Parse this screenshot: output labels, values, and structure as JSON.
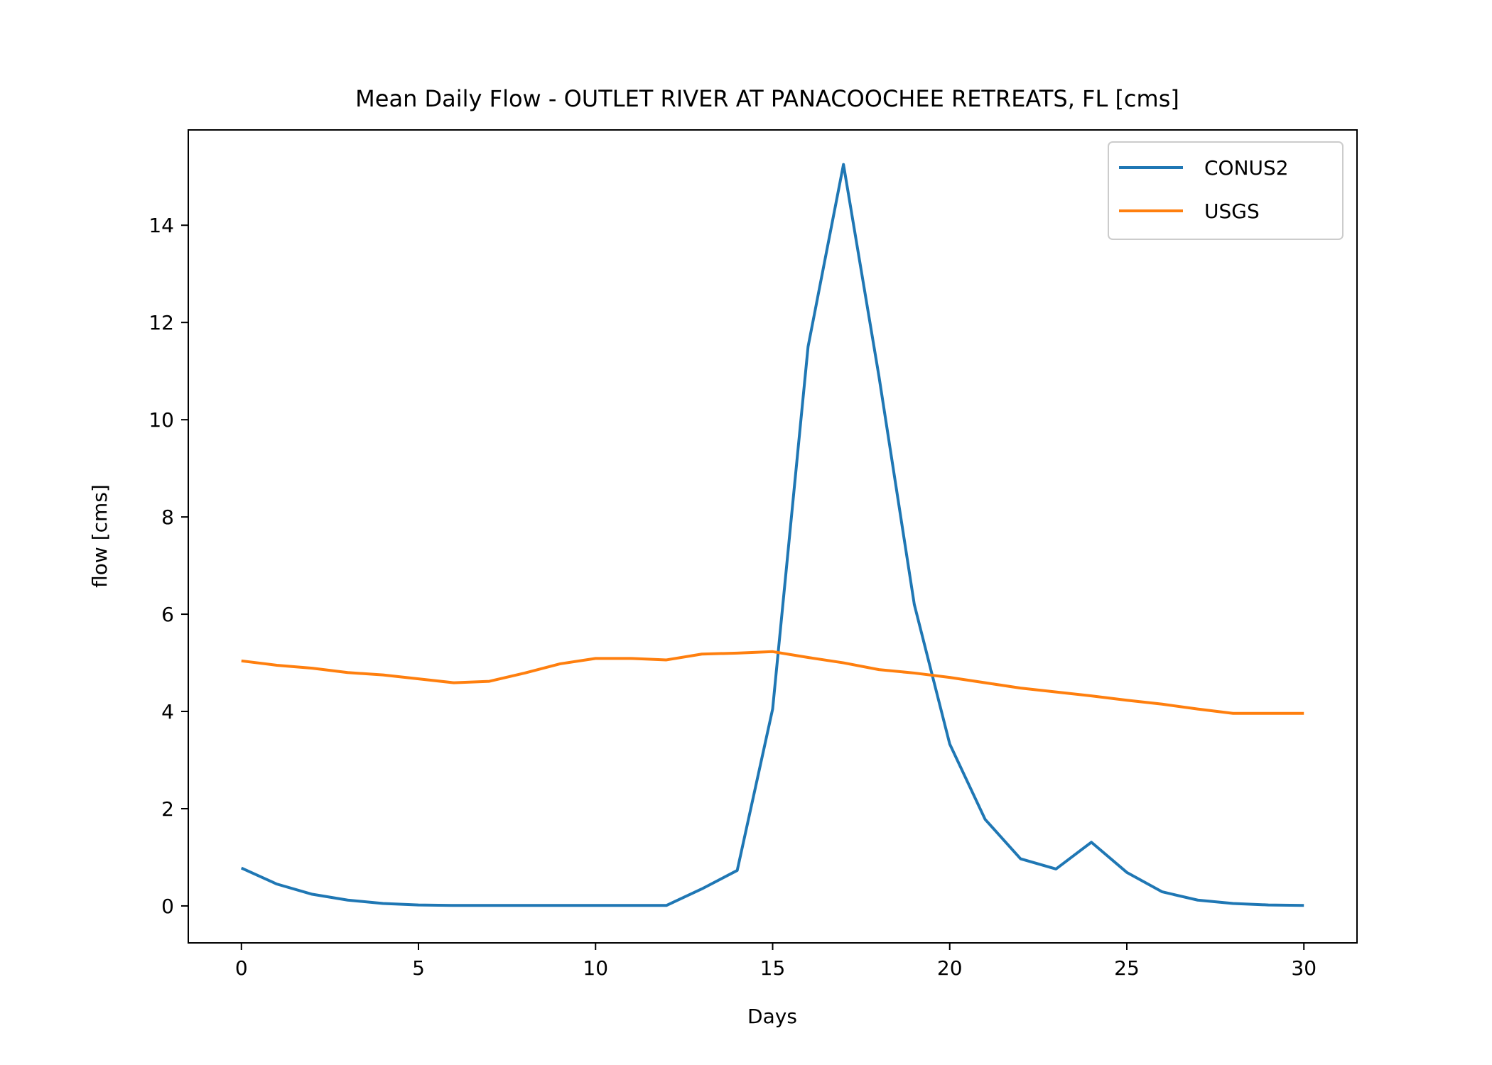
{
  "chart_data": {
    "type": "line",
    "title": "Mean Daily Flow - OUTLET RIVER AT PANACOOCHEE RETREATS, FL [cms]",
    "xlabel": "Days",
    "ylabel": "flow [cms]",
    "xlim": [
      -1.5,
      31.5
    ],
    "ylim": [
      -0.76,
      15.96
    ],
    "xticks": [
      0,
      5,
      10,
      15,
      20,
      25,
      30
    ],
    "yticks": [
      0,
      2,
      4,
      6,
      8,
      10,
      12,
      14
    ],
    "x": [
      0,
      1,
      2,
      3,
      4,
      5,
      6,
      7,
      8,
      9,
      10,
      11,
      12,
      13,
      14,
      15,
      16,
      17,
      18,
      19,
      20,
      21,
      22,
      23,
      24,
      25,
      26,
      27,
      28,
      29,
      30
    ],
    "grid": false,
    "legend_position": "top-right",
    "series": [
      {
        "name": "CONUS2",
        "color": "#1f77b4",
        "values": [
          0.78,
          0.45,
          0.24,
          0.12,
          0.05,
          0.02,
          0.01,
          0.01,
          0.01,
          0.01,
          0.01,
          0.01,
          0.01,
          0.35,
          0.73,
          4.05,
          11.5,
          15.25,
          10.9,
          6.2,
          3.33,
          1.78,
          0.97,
          0.76,
          1.31,
          0.69,
          0.29,
          0.12,
          0.05,
          0.02,
          0.01
        ]
      },
      {
        "name": "USGS",
        "color": "#ff7f0e",
        "values": [
          5.04,
          4.95,
          4.89,
          4.8,
          4.75,
          4.67,
          4.59,
          4.62,
          4.79,
          4.98,
          5.09,
          5.09,
          5.06,
          5.18,
          5.2,
          5.23,
          5.11,
          5.0,
          4.86,
          4.79,
          4.7,
          4.59,
          4.48,
          4.4,
          4.32,
          4.23,
          4.15,
          4.05,
          3.96,
          3.96,
          3.96
        ]
      }
    ]
  }
}
